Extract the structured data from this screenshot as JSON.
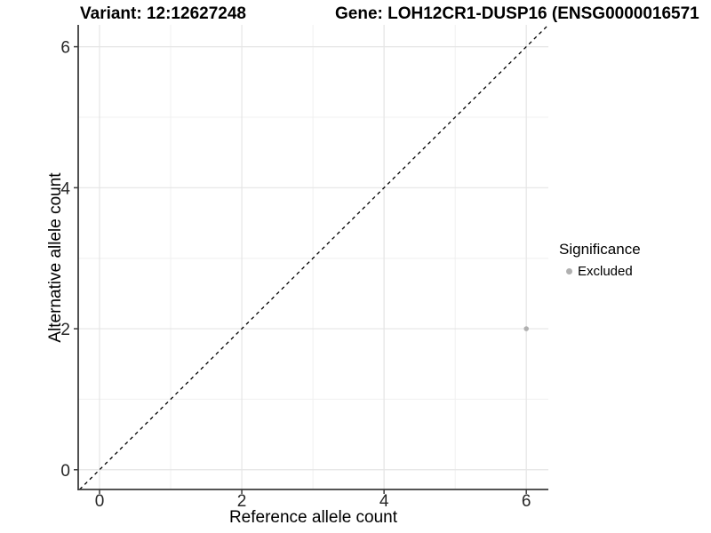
{
  "titles": {
    "variant": "Variant: 12:12627248",
    "gene": "Gene: LOH12CR1-DUSP16 (ENSG0000016571"
  },
  "legend": {
    "title": "Significance",
    "items": [
      {
        "label": "Excluded",
        "color": "#b0b0b0"
      }
    ]
  },
  "colors": {
    "background": "#ffffff",
    "grid_major": "#e5e5e5",
    "grid_minor": "#f0f0f0",
    "axis_line": "#3c3c3c",
    "tick_text": "#262626",
    "point": "#b0b0b0",
    "abline": "#000000"
  },
  "chart_data": {
    "type": "scatter",
    "title": "Variant: 12:12627248   Gene: LOH12CR1-DUSP16 (ENSG0000016571",
    "xlabel": "Reference allele count",
    "ylabel": "Alternative allele count",
    "xlim": [
      -0.3,
      6.31
    ],
    "ylim": [
      -0.28,
      6.31
    ],
    "x_ticks": [
      0,
      2,
      4,
      6
    ],
    "y_ticks": [
      0,
      2,
      4,
      6
    ],
    "x_minor_ticks": [
      1,
      3,
      5
    ],
    "y_minor_ticks": [
      1,
      3,
      5
    ],
    "grid": true,
    "legend_position": "right",
    "series": [
      {
        "name": "Excluded",
        "color": "#b0b0b0",
        "points": [
          {
            "x": 6,
            "y": 2
          }
        ]
      }
    ],
    "abline": {
      "slope": 1,
      "intercept": 0,
      "style": "dashed"
    }
  }
}
